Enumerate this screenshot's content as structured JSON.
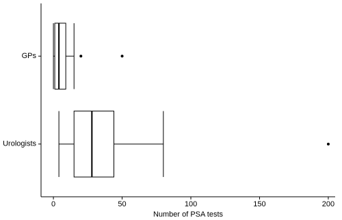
{
  "chart_data": {
    "type": "boxplot",
    "orientation": "horizontal",
    "x_label": "Number of PSA tests",
    "categories": [
      "GPs",
      "Urologists"
    ],
    "boxes": [
      {
        "min": 0,
        "q1": 1,
        "median": 4,
        "q3": 9,
        "max": 15,
        "outliers": [
          20,
          50
        ]
      },
      {
        "min": 4,
        "q1": 15,
        "median": 28,
        "q3": 44,
        "max": 80,
        "outliers": [
          200
        ]
      }
    ],
    "color": "#000000",
    "xlim": [
      -9,
      205
    ],
    "xticks": [
      0,
      50,
      100,
      150,
      200
    ],
    "grid": false
  }
}
